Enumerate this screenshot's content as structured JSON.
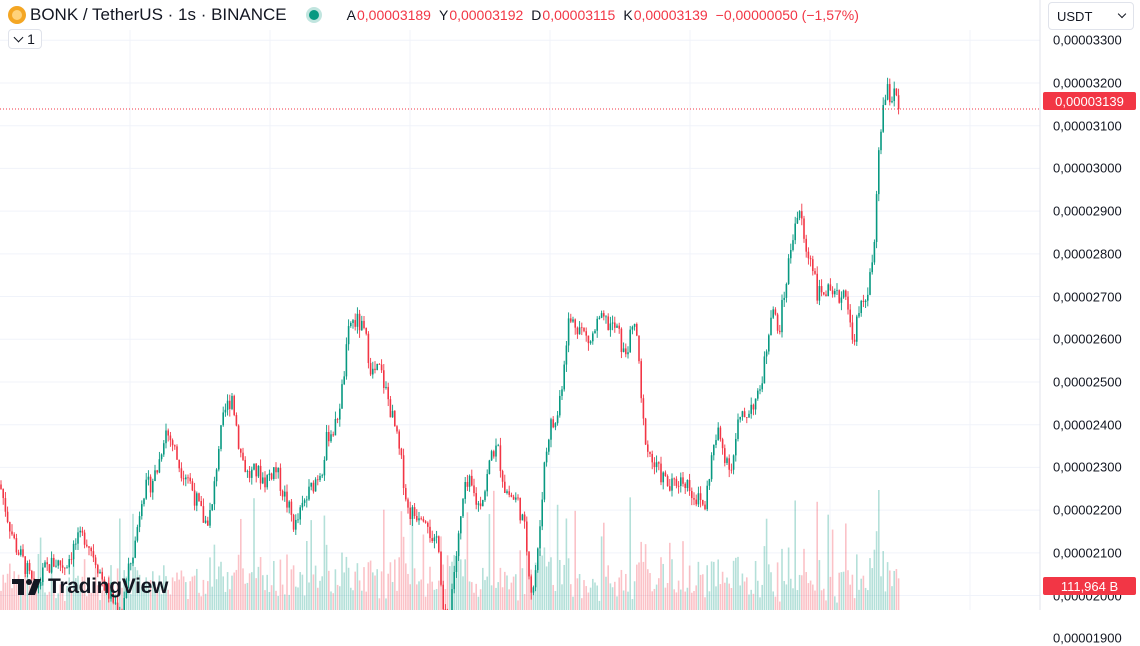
{
  "legend": {
    "symbol": "BONK / TetherUS · 1s · BINANCE",
    "ohlc": [
      {
        "key": "A",
        "value": "0,00003189"
      },
      {
        "key": "Y",
        "value": "0,00003192"
      },
      {
        "key": "D",
        "value": "0,00003115"
      },
      {
        "key": "K",
        "value": "0,00003139"
      }
    ],
    "change": "−0,00000050 (−1,57%)"
  },
  "toggle_label": "1",
  "currency": "USDT",
  "last_price_label": "0,00003139",
  "volume_label": "111,964 B",
  "brand": "TradingView",
  "colors": {
    "up": "#089981",
    "down": "#f23645",
    "grid": "#f0f3fa"
  },
  "chart_data": {
    "type": "candlestick",
    "title": "BONK / TetherUS · 1s · BINANCE",
    "ylim": [
      1.91e-05,
      3.31e-05
    ],
    "y_ticks": [
      "0,00003300",
      "0,00003200",
      "0,00003100",
      "0,00003000",
      "0,00002900",
      "0,00002800",
      "0,00002700",
      "0,00002600",
      "0,00002500",
      "0,00002400",
      "0,00002300",
      "0,00002200",
      "0,00002100",
      "0,00002000",
      "0,00001900"
    ],
    "last_price": 3.139e-05,
    "close_path": [
      [
        0,
        2.26e-05
      ],
      [
        8,
        2.18e-05
      ],
      [
        15,
        2.12e-05
      ],
      [
        25,
        2.07e-05
      ],
      [
        35,
        2.01e-05
      ],
      [
        45,
        2.06e-05
      ],
      [
        55,
        2.08e-05
      ],
      [
        65,
        2.07e-05
      ],
      [
        75,
        2.12e-05
      ],
      [
        85,
        2.14e-05
      ],
      [
        95,
        2.09e-05
      ],
      [
        105,
        2.02e-05
      ],
      [
        115,
        1.98e-05
      ],
      [
        122,
        1.97e-05
      ],
      [
        128,
        2.05e-05
      ],
      [
        135,
        2.12e-05
      ],
      [
        142,
        2.24e-05
      ],
      [
        150,
        2.26e-05
      ],
      [
        158,
        2.3e-05
      ],
      [
        165,
        2.39e-05
      ],
      [
        172,
        2.36e-05
      ],
      [
        180,
        2.3e-05
      ],
      [
        188,
        2.28e-05
      ],
      [
        195,
        2.23e-05
      ],
      [
        205,
        2.17e-05
      ],
      [
        212,
        2.2e-05
      ],
      [
        218,
        2.34e-05
      ],
      [
        225,
        2.43e-05
      ],
      [
        232,
        2.47e-05
      ],
      [
        240,
        2.34e-05
      ],
      [
        248,
        2.28e-05
      ],
      [
        256,
        2.29e-05
      ],
      [
        265,
        2.27e-05
      ],
      [
        275,
        2.3e-05
      ],
      [
        285,
        2.23e-05
      ],
      [
        295,
        2.16e-05
      ],
      [
        305,
        2.22e-05
      ],
      [
        315,
        2.27e-05
      ],
      [
        322,
        2.3e-05
      ],
      [
        328,
        2.38e-05
      ],
      [
        335,
        2.39e-05
      ],
      [
        342,
        2.48e-05
      ],
      [
        350,
        2.64e-05
      ],
      [
        358,
        2.64e-05
      ],
      [
        365,
        2.61e-05
      ],
      [
        372,
        2.52e-05
      ],
      [
        380,
        2.53e-05
      ],
      [
        388,
        2.46e-05
      ],
      [
        395,
        2.39e-05
      ],
      [
        402,
        2.3e-05
      ],
      [
        408,
        2.2e-05
      ],
      [
        415,
        2.19e-05
      ],
      [
        422,
        2.2e-05
      ],
      [
        428,
        2.18e-05
      ],
      [
        433,
        2.1e-05
      ],
      [
        438,
        2.15e-05
      ],
      [
        443,
        1.97e-05
      ],
      [
        448,
        1.92e-05
      ],
      [
        453,
        2.04e-05
      ],
      [
        458,
        2.12e-05
      ],
      [
        464,
        2.24e-05
      ],
      [
        470,
        2.26e-05
      ],
      [
        478,
        2.21e-05
      ],
      [
        485,
        2.25e-05
      ],
      [
        492,
        2.34e-05
      ],
      [
        498,
        2.34e-05
      ],
      [
        505,
        2.25e-05
      ],
      [
        512,
        2.23e-05
      ],
      [
        518,
        2.22e-05
      ],
      [
        525,
        2.15e-05
      ],
      [
        532,
        2e-05
      ],
      [
        538,
        2.1e-05
      ],
      [
        544,
        2.3e-05
      ],
      [
        550,
        2.4e-05
      ],
      [
        556,
        2.4e-05
      ],
      [
        562,
        2.5e-05
      ],
      [
        568,
        2.64e-05
      ],
      [
        575,
        2.64e-05
      ],
      [
        582,
        2.62e-05
      ],
      [
        590,
        2.59e-05
      ],
      [
        598,
        2.64e-05
      ],
      [
        605,
        2.64e-05
      ],
      [
        612,
        2.63e-05
      ],
      [
        618,
        2.62e-05
      ],
      [
        624,
        2.56e-05
      ],
      [
        630,
        2.6e-05
      ],
      [
        636,
        2.64e-05
      ],
      [
        642,
        2.42e-05
      ],
      [
        648,
        2.34e-05
      ],
      [
        655,
        2.3e-05
      ],
      [
        662,
        2.28e-05
      ],
      [
        670,
        2.25e-05
      ],
      [
        678,
        2.27e-05
      ],
      [
        686,
        2.27e-05
      ],
      [
        695,
        2.23e-05
      ],
      [
        705,
        2.21e-05
      ],
      [
        712,
        2.33e-05
      ],
      [
        718,
        2.38e-05
      ],
      [
        725,
        2.33e-05
      ],
      [
        732,
        2.3e-05
      ],
      [
        738,
        2.4e-05
      ],
      [
        745,
        2.42e-05
      ],
      [
        752,
        2.45e-05
      ],
      [
        758,
        2.46e-05
      ],
      [
        765,
        2.55e-05
      ],
      [
        772,
        2.69e-05
      ],
      [
        778,
        2.61e-05
      ],
      [
        784,
        2.7e-05
      ],
      [
        790,
        2.8e-05
      ],
      [
        795,
        2.88e-05
      ],
      [
        800,
        2.9e-05
      ],
      [
        806,
        2.8e-05
      ],
      [
        812,
        2.79e-05
      ],
      [
        818,
        2.7e-05
      ],
      [
        825,
        2.72e-05
      ],
      [
        832,
        2.69e-05
      ],
      [
        840,
        2.7e-05
      ],
      [
        846,
        2.72e-05
      ],
      [
        852,
        2.59e-05
      ],
      [
        858,
        2.65e-05
      ],
      [
        864,
        2.69e-05
      ],
      [
        870,
        2.74e-05
      ],
      [
        875,
        2.83e-05
      ],
      [
        879,
        3.05e-05
      ],
      [
        883,
        3.14e-05
      ],
      [
        887,
        3.18e-05
      ],
      [
        891,
        3.16e-05
      ],
      [
        895,
        3.2e-05
      ],
      [
        899,
        3.139e-05
      ]
    ]
  }
}
